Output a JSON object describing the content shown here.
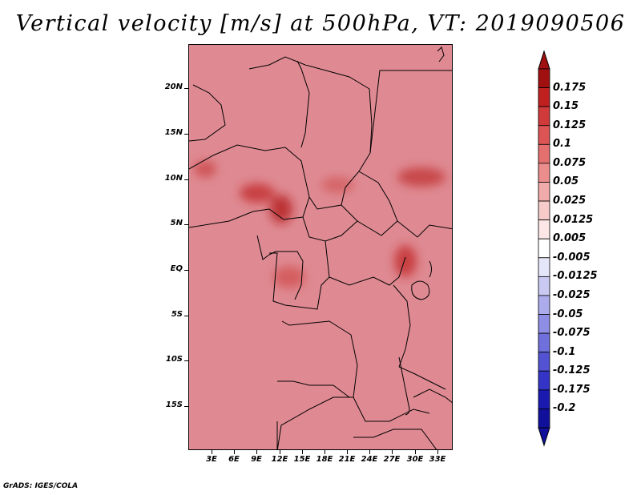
{
  "title": "Vertical velocity [m/s] at 500hPa, VT: 2019090506",
  "footer": "GrADS: IGES/COLA",
  "map": {
    "lat_labels": [
      "20N",
      "15N",
      "10N",
      "5N",
      "EQ",
      "5S",
      "10S",
      "15S"
    ],
    "lon_labels": [
      "3E",
      "6E",
      "9E",
      "12E",
      "15E",
      "18E",
      "21E",
      "24E",
      "27E",
      "30E",
      "33E"
    ]
  },
  "colorbar": {
    "labels": [
      "0.175",
      "0.15",
      "0.125",
      "0.1",
      "0.075",
      "0.05",
      "0.025",
      "0.0125",
      "0.005",
      "-0.005",
      "-0.0125",
      "-0.025",
      "-0.05",
      "-0.075",
      "-0.1",
      "-0.125",
      "-0.175",
      "-0.2"
    ],
    "colors": [
      "#a01010",
      "#c02020",
      "#d03a3a",
      "#dc5454",
      "#e46f6f",
      "#ec8d8d",
      "#f2abab",
      "#f8cbcb",
      "#fce6e6",
      "#ffffff",
      "#e6e6fa",
      "#c9c9f2",
      "#acacec",
      "#8e8ee4",
      "#7070dc",
      "#5252d2",
      "#3434c6",
      "#1a1ab0",
      "#10109a"
    ],
    "over_color": "#a01010",
    "under_color": "#10109a"
  }
}
